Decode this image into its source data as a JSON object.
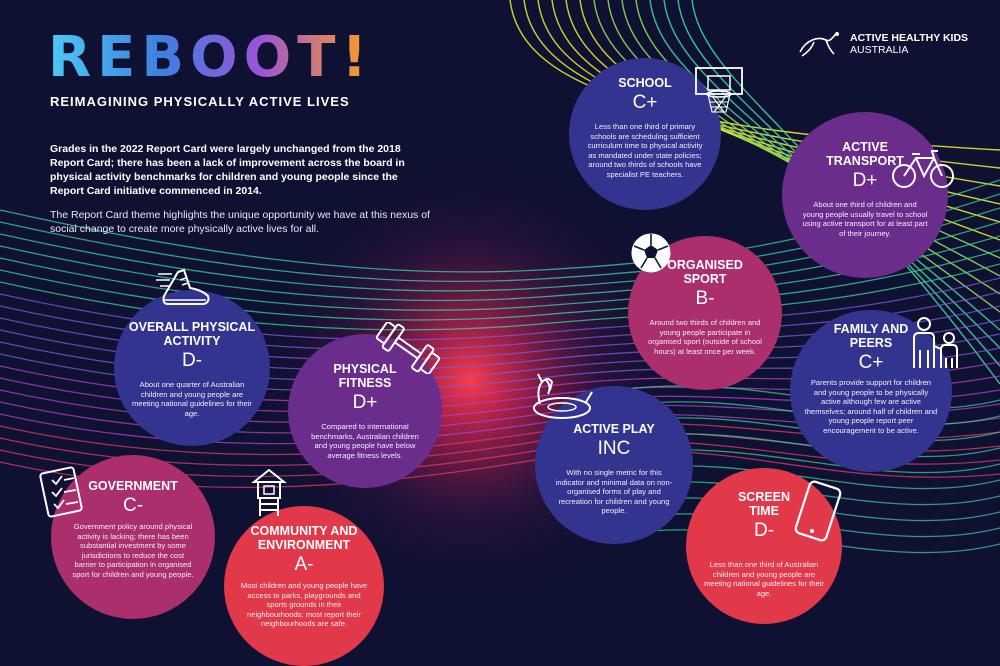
{
  "header": {
    "logo_title": "REBOOT!",
    "subtitle": "REIMAGINING PHYSICALLY ACTIVE LIVES",
    "intro_bold": "Grades in the 2022 Report Card were largely unchanged from the 2018 Report Card; there has been a lack of improvement across the board in physical activity benchmarks for children and young people since the Report Card initiative commenced in 2014.",
    "intro_normal": "The Report Card theme highlights the unique opportunity we have at this nexus of social change to create more physically active lives for all."
  },
  "brand": {
    "line1": "ACTIVE HEALTHY KIDS",
    "line2": "AUSTRALIA"
  },
  "colors": {
    "background": "#0f1132",
    "navy_circle": "#33348f",
    "purple_circle": "#6b2d8c",
    "magenta_circle": "#ab2e6d",
    "red_circle": "#e2394a",
    "line_yellow": "#e6e62a",
    "line_green": "#3ed39c",
    "line_magenta": "#d23ab8"
  },
  "indicators": [
    {
      "key": "school",
      "title": "SCHOOL",
      "grade": "C+",
      "description": "Less than one third of primary schools are scheduling sufficient curriculum time to physical activity as mandated under state policies; around two thirds of schools have specialist PE teachers.",
      "icon": "basketball-hoop-icon"
    },
    {
      "key": "active_transport",
      "title": "ACTIVE TRANSPORT",
      "grade": "D+",
      "description": "About one third of children and young people usually travel to school using active transport for at least part of their journey.",
      "icon": "bicycle-icon"
    },
    {
      "key": "organised_sport",
      "title": "ORGANISED SPORT",
      "grade": "B-",
      "description": "Around two thirds of children and young people participate in organised sport (outside of school hours) at least once per week.",
      "icon": "soccer-ball-icon"
    },
    {
      "key": "family_peers",
      "title": "FAMILY AND PEERS",
      "grade": "C+",
      "description": "Parents provide support for children and young people to be physically active although few are active themselves; around half of children and young people report peer encouragement to be active.",
      "icon": "family-icon"
    },
    {
      "key": "overall_pa",
      "title": "OVERALL PHYSICAL ACTIVITY",
      "grade": "D-",
      "description": "About one quarter of Australian children and young people are meeting national guidelines for their age.",
      "icon": "running-shoe-icon"
    },
    {
      "key": "physical_fitness",
      "title": "PHYSICAL FITNESS",
      "grade": "D+",
      "description": "Compared to international benchmarks, Australian children and young people have below average fitness levels.",
      "icon": "dumbbell-icon"
    },
    {
      "key": "active_play",
      "title": "ACTIVE PLAY",
      "grade": "INC",
      "description": "With no single metric for this indicator and minimal data on non-organised forms of play and recreation for children and young people.",
      "icon": "unicorn-float-icon"
    },
    {
      "key": "government",
      "title": "GOVERNMENT",
      "grade": "C-",
      "description": "Government policy around physical activity is lacking; there has been substantial investment by some jurisdictions to reduce the cost barrier to participation in organised sport for children and young people.",
      "icon": "checklist-icon"
    },
    {
      "key": "community",
      "title": "COMMUNITY AND ENVIRONMENT",
      "grade": "A-",
      "description": "Most children and young people have access to parks, playgrounds and sports grounds in their neighbourhoods; most report their neighbourhoods are safe.",
      "icon": "playground-icon"
    },
    {
      "key": "screen_time",
      "title": "SCREEN TIME",
      "grade": "D-",
      "description": "Less than one third of Australian children and young people are meeting national guidelines for their age.",
      "icon": "tablet-icon"
    }
  ]
}
